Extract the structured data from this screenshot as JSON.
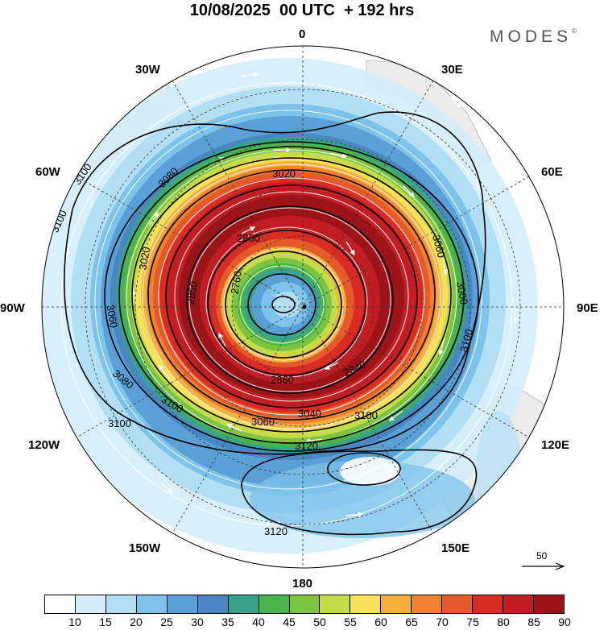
{
  "title": "10/08/2025  00 UTC  + 192 hrs",
  "brand": "MODES",
  "brand_mark": "©",
  "longitude_labels": {
    "n0": "0",
    "n30e": "30E",
    "n60e": "60E",
    "n90e": "90E",
    "n120e": "120E",
    "n150e": "150E",
    "n180": "180",
    "n150w": "150W",
    "n120w": "120W",
    "n90w": "90W",
    "n60w": "60W",
    "n30w": "30W"
  },
  "contour_labels": [
    "3100",
    "3100",
    "3080",
    "3020",
    "2800",
    "2760",
    "3060",
    "3000",
    "3100",
    "2840",
    "2860",
    "3040",
    "3060",
    "3100",
    "3120",
    "3120",
    "3080",
    "3060",
    "3100",
    "3020",
    "2850",
    "3100"
  ],
  "wind_reference": {
    "value": "50"
  },
  "legend": {
    "levels": [
      "10",
      "15",
      "20",
      "25",
      "30",
      "35",
      "40",
      "45",
      "50",
      "55",
      "60",
      "65",
      "70",
      "75",
      "80",
      "85",
      "90"
    ],
    "colors": [
      "#ffffff",
      "#d4eefb",
      "#b3dff5",
      "#7ec3ea",
      "#5a9fd6",
      "#4a86c2",
      "#3aa18a",
      "#4ab34a",
      "#7cc442",
      "#c5dc4a",
      "#f7e05a",
      "#f5b042",
      "#ee8230",
      "#e45a2a",
      "#d92c24",
      "#c01e22",
      "#9c1418"
    ]
  }
}
